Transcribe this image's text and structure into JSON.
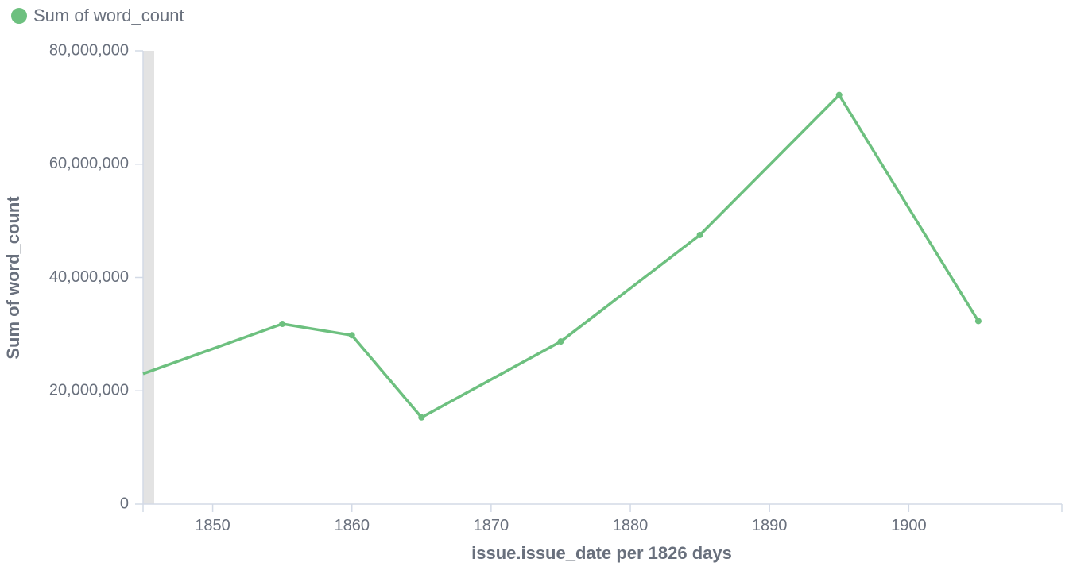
{
  "legend": {
    "label": "Sum of word_count",
    "color": "#6dc07f"
  },
  "chart_data": {
    "type": "line",
    "title": "",
    "xlabel": "issue.issue_date per 1826 days",
    "ylabel": "Sum of word_count",
    "series": [
      {
        "name": "Sum of word_count",
        "color": "#6dc07f",
        "x": [
          1845,
          1855,
          1860,
          1865,
          1875,
          1885,
          1895,
          1905
        ],
        "values": [
          23000000,
          31800000,
          29800000,
          15300000,
          28700000,
          47500000,
          72200000,
          32300000
        ]
      }
    ],
    "x_ticks": [
      "1850",
      "1860",
      "1870",
      "1880",
      "1890",
      "1900"
    ],
    "x_tick_values": [
      1850,
      1860,
      1870,
      1880,
      1890,
      1900
    ],
    "y_ticks": [
      "0",
      "20,000,000",
      "40,000,000",
      "60,000,000",
      "80,000,000"
    ],
    "y_tick_values": [
      0,
      20000000,
      40000000,
      60000000,
      80000000
    ],
    "xlim": [
      1845,
      1911
    ],
    "ylim": [
      0,
      80000000
    ],
    "grid": false,
    "legend_position": "top-left"
  }
}
